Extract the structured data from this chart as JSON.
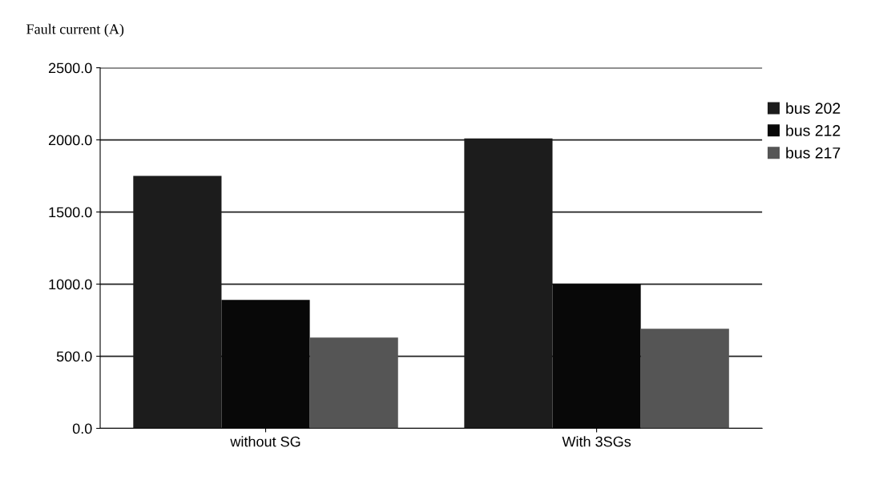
{
  "chart_data": {
    "type": "bar",
    "ylabel": "Fault current (A)",
    "categories": [
      "without SG",
      "With 3SGs"
    ],
    "series": [
      {
        "name": "bus 202",
        "color": "#1c1c1c",
        "values": [
          1750,
          2010
        ]
      },
      {
        "name": "bus 212",
        "color": "#080808",
        "values": [
          890,
          1000
        ]
      },
      {
        "name": "bus 217",
        "color": "#555555",
        "values": [
          630,
          690
        ]
      }
    ],
    "ylim": [
      0,
      2500
    ],
    "yticks": [
      {
        "value": 0,
        "label": "0.0"
      },
      {
        "value": 500,
        "label": "500.0"
      },
      {
        "value": 1000,
        "label": "1000.0"
      },
      {
        "value": 1500,
        "label": "1500.0"
      },
      {
        "value": 2000,
        "label": "2000.0"
      },
      {
        "value": 2500,
        "label": "2500.0"
      }
    ],
    "grid": "y",
    "legend": "right"
  }
}
